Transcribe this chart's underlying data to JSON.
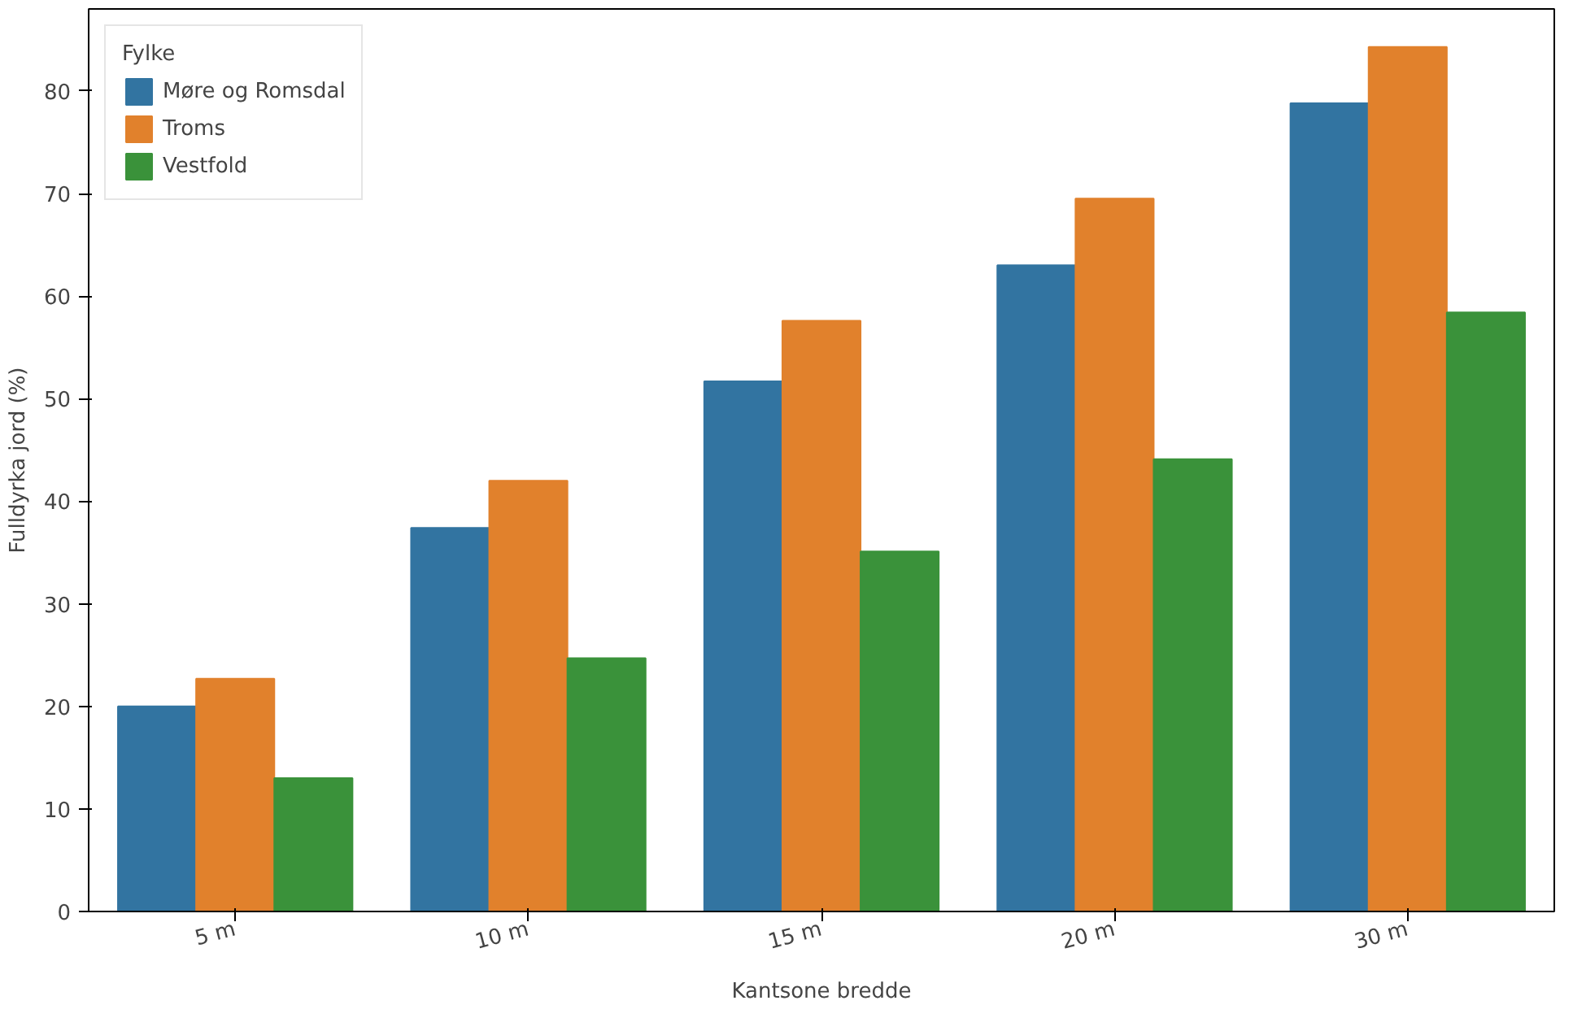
{
  "chart_data": {
    "type": "bar",
    "xlabel": "Kantsone bredde",
    "ylabel": "Fulldyrka jord (%)",
    "legend_title": "Fylke",
    "legend": "top left",
    "categories": [
      "5 m",
      "10 m",
      "15 m",
      "20 m",
      "30 m"
    ],
    "series": [
      {
        "name": "Møre og Romsdal",
        "color": "#3274a1",
        "values": [
          20.0,
          37.4,
          51.7,
          63.0,
          78.8
        ]
      },
      {
        "name": "Troms",
        "color": "#e1812c",
        "values": [
          22.7,
          42.0,
          57.6,
          69.5,
          84.3
        ]
      },
      {
        "name": "Vestfold",
        "color": "#3a923a",
        "values": [
          13.0,
          24.7,
          35.1,
          44.1,
          58.4
        ]
      }
    ],
    "ylim": [
      0,
      88
    ],
    "yticks": [
      0,
      10,
      20,
      30,
      40,
      50,
      60,
      70,
      80
    ],
    "grid": false
  }
}
